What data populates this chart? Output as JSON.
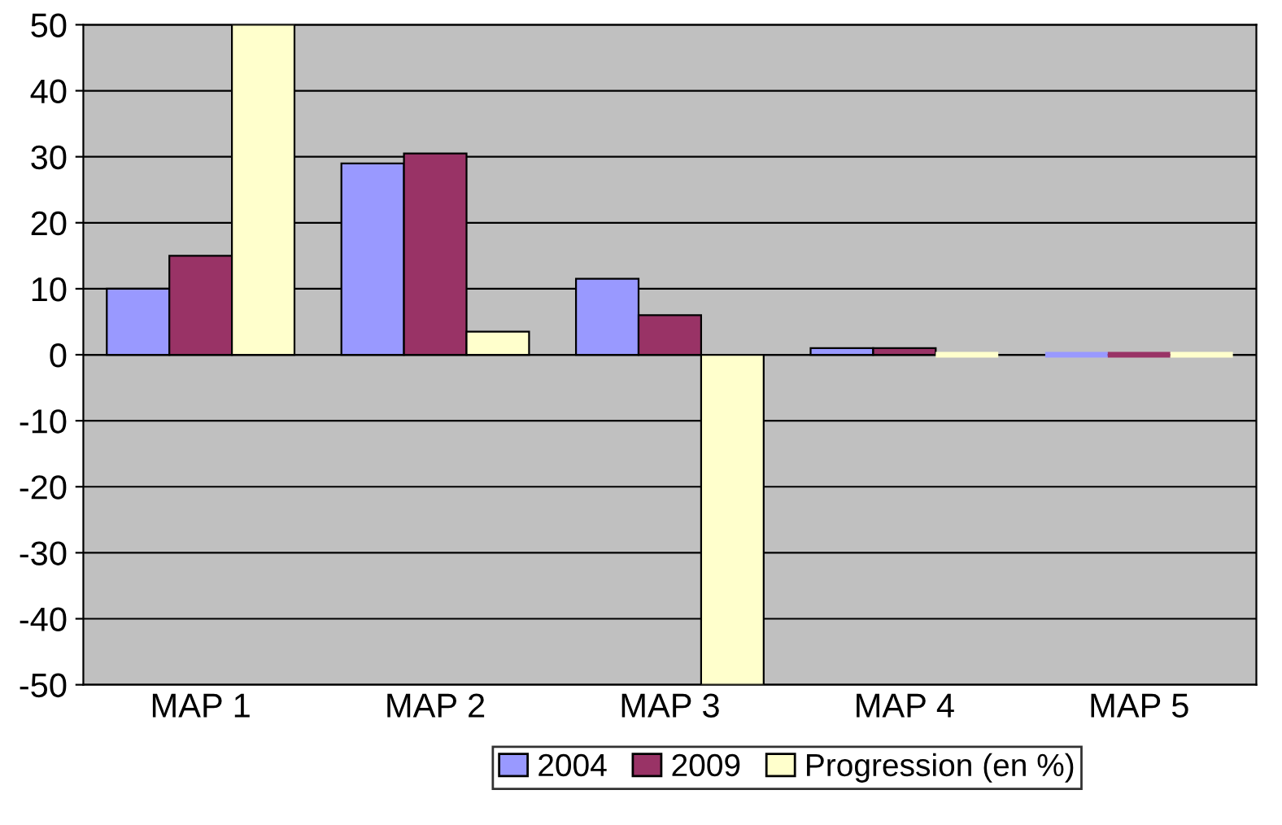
{
  "chart_data": {
    "type": "bar",
    "categories": [
      "MAP 1",
      "MAP 2",
      "MAP 3",
      "MAP 4",
      "MAP 5"
    ],
    "series": [
      {
        "name": "2004",
        "color": "#9999ff",
        "values": [
          10,
          29,
          11.5,
          1,
          0
        ]
      },
      {
        "name": "2009",
        "color": "#993366",
        "values": [
          15,
          30.5,
          6,
          1,
          0
        ]
      },
      {
        "name": "Progression (en %)",
        "color": "#ffffcc",
        "values": [
          50,
          3.5,
          -50,
          0,
          0
        ]
      }
    ],
    "ylim": [
      -50,
      50
    ],
    "yticks": [
      -50,
      -40,
      -30,
      -20,
      -10,
      0,
      10,
      20,
      30,
      40,
      50
    ],
    "grid": "y",
    "legend": "bottom"
  }
}
